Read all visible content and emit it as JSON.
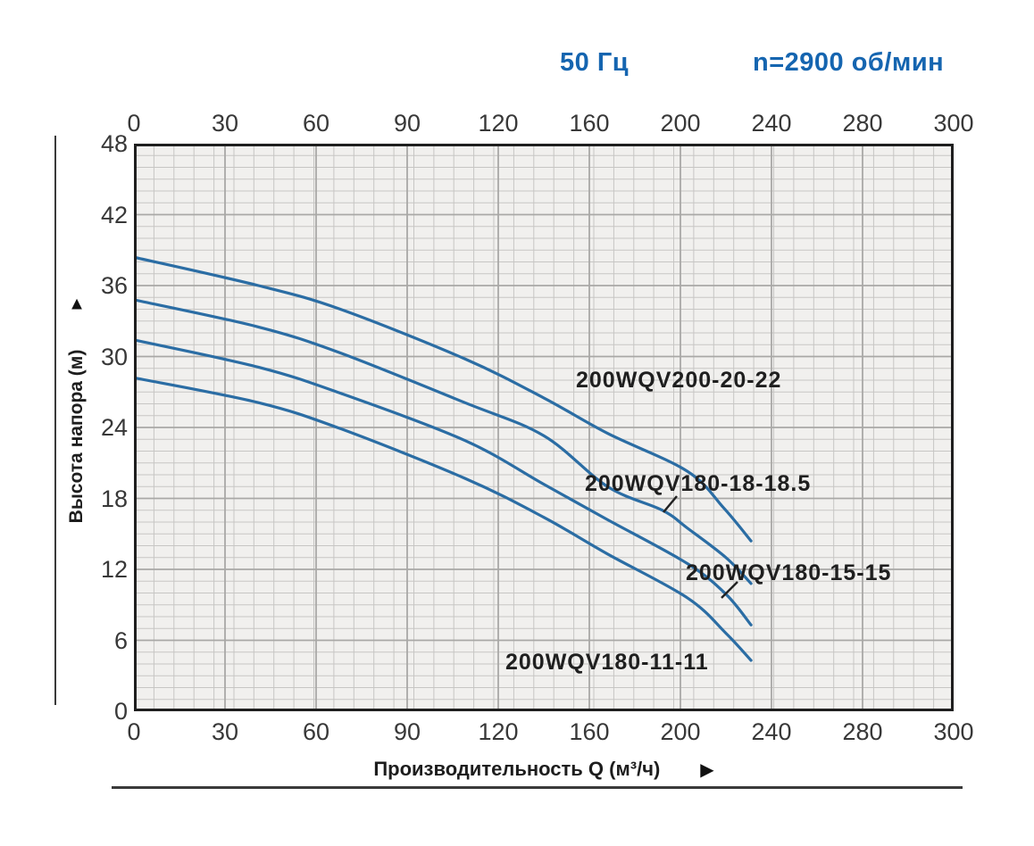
{
  "header": {
    "frequency": "50 Гц",
    "speed": "n=2900 об/мин"
  },
  "colors": {
    "header_blue": "#1565b0",
    "curve_blue": "#2b6da4",
    "grid_minor": "#c7c6c4",
    "grid_major": "#a9a8a6",
    "plot_bg": "#f1f0ee",
    "frame": "#1f1f1f"
  },
  "icons": {
    "y_axis_arrow": "▲",
    "x_axis_arrow": "▶"
  },
  "chart_data": {
    "type": "line",
    "title": "",
    "xlabel": "Производительность Q (м³/ч)",
    "ylabel": "Высота напора (м)",
    "x_ticks": [
      0,
      30,
      60,
      90,
      120,
      160,
      200,
      240,
      280,
      300
    ],
    "y_ticks": [
      0,
      6,
      12,
      18,
      24,
      30,
      36,
      42,
      48
    ],
    "ylim": [
      0,
      48
    ],
    "grid": "on",
    "legend_position": "inline-labels",
    "series": [
      {
        "name": "200WQV200-20-22",
        "points": [
          [
            0,
            38.4
          ],
          [
            41,
            36.0
          ],
          [
            68,
            34.0
          ],
          [
            109,
            29.8
          ],
          [
            140,
            26.5
          ],
          [
            168,
            23.5
          ],
          [
            203,
            20.3
          ],
          [
            219,
            17.2
          ],
          [
            231,
            14.4
          ]
        ]
      },
      {
        "name": "200WQV180-18-18.5",
        "points": [
          [
            0,
            34.8
          ],
          [
            41,
            32.5
          ],
          [
            68,
            30.3
          ],
          [
            109,
            26.1
          ],
          [
            140,
            23.3
          ],
          [
            168,
            19.0
          ],
          [
            192,
            17.0
          ],
          [
            203,
            15.5
          ],
          [
            220,
            13.0
          ],
          [
            231,
            10.8
          ]
        ]
      },
      {
        "name": "200WQV180-15-15",
        "points": [
          [
            0,
            31.4
          ],
          [
            41,
            29.1
          ],
          [
            68,
            26.9
          ],
          [
            109,
            22.9
          ],
          [
            140,
            19.2
          ],
          [
            168,
            16.2
          ],
          [
            203,
            12.5
          ],
          [
            220,
            9.9
          ],
          [
            231,
            7.3
          ]
        ]
      },
      {
        "name": "200WQV180-11-11",
        "points": [
          [
            0,
            28.2
          ],
          [
            41,
            26.1
          ],
          [
            68,
            23.9
          ],
          [
            109,
            19.7
          ],
          [
            140,
            16.4
          ],
          [
            168,
            13.3
          ],
          [
            203,
            9.6
          ],
          [
            220,
            6.6
          ],
          [
            231,
            4.3
          ]
        ]
      }
    ]
  }
}
